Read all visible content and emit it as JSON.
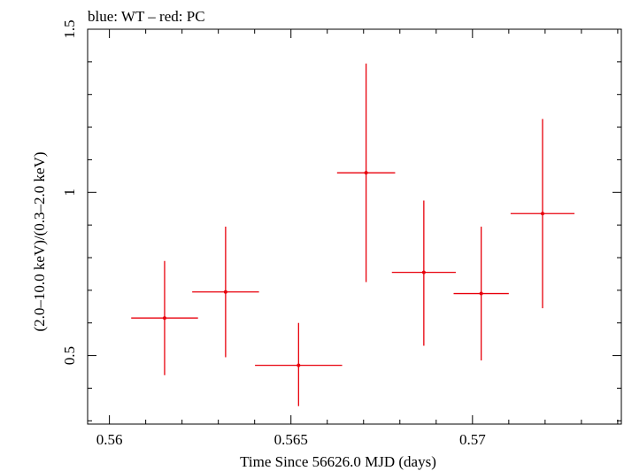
{
  "chart_data": {
    "type": "scatter",
    "title": "blue: WT – red: PC",
    "xlabel": "Time Since 56626.0 MJD (days)",
    "ylabel": "(2.0–10.0 keV)/(0.3–2.0 keV)",
    "xlim": [
      0.5594,
      0.5741
    ],
    "ylim": [
      0.29,
      1.5
    ],
    "x_ticks": [
      0.56,
      0.565,
      0.57
    ],
    "x_tick_labels": [
      "0.56",
      "0.565",
      "0.57"
    ],
    "y_ticks": [
      0.5,
      1,
      1.5
    ],
    "y_tick_labels": [
      "0.5",
      "1",
      "1.5"
    ],
    "grid": false,
    "series": [
      {
        "color": "#e8000b",
        "points": [
          {
            "x": 0.56152,
            "y": 0.615,
            "xerr": 0.00092,
            "ylow": 0.44,
            "yhigh": 0.79
          },
          {
            "x": 0.5632,
            "y": 0.695,
            "xerr": 0.00092,
            "ylow": 0.495,
            "yhigh": 0.895
          },
          {
            "x": 0.56521,
            "y": 0.47,
            "xerr": 0.0012,
            "ylow": 0.345,
            "yhigh": 0.6
          },
          {
            "x": 0.56707,
            "y": 1.06,
            "xerr": 0.0008,
            "ylow": 0.725,
            "yhigh": 1.395
          },
          {
            "x": 0.56866,
            "y": 0.755,
            "xerr": 0.00088,
            "ylow": 0.53,
            "yhigh": 0.975
          },
          {
            "x": 0.57024,
            "y": 0.69,
            "xerr": 0.00076,
            "ylow": 0.485,
            "yhigh": 0.895
          },
          {
            "x": 0.57193,
            "y": 0.935,
            "xerr": 0.00088,
            "ylow": 0.645,
            "yhigh": 1.225
          }
        ]
      }
    ]
  }
}
